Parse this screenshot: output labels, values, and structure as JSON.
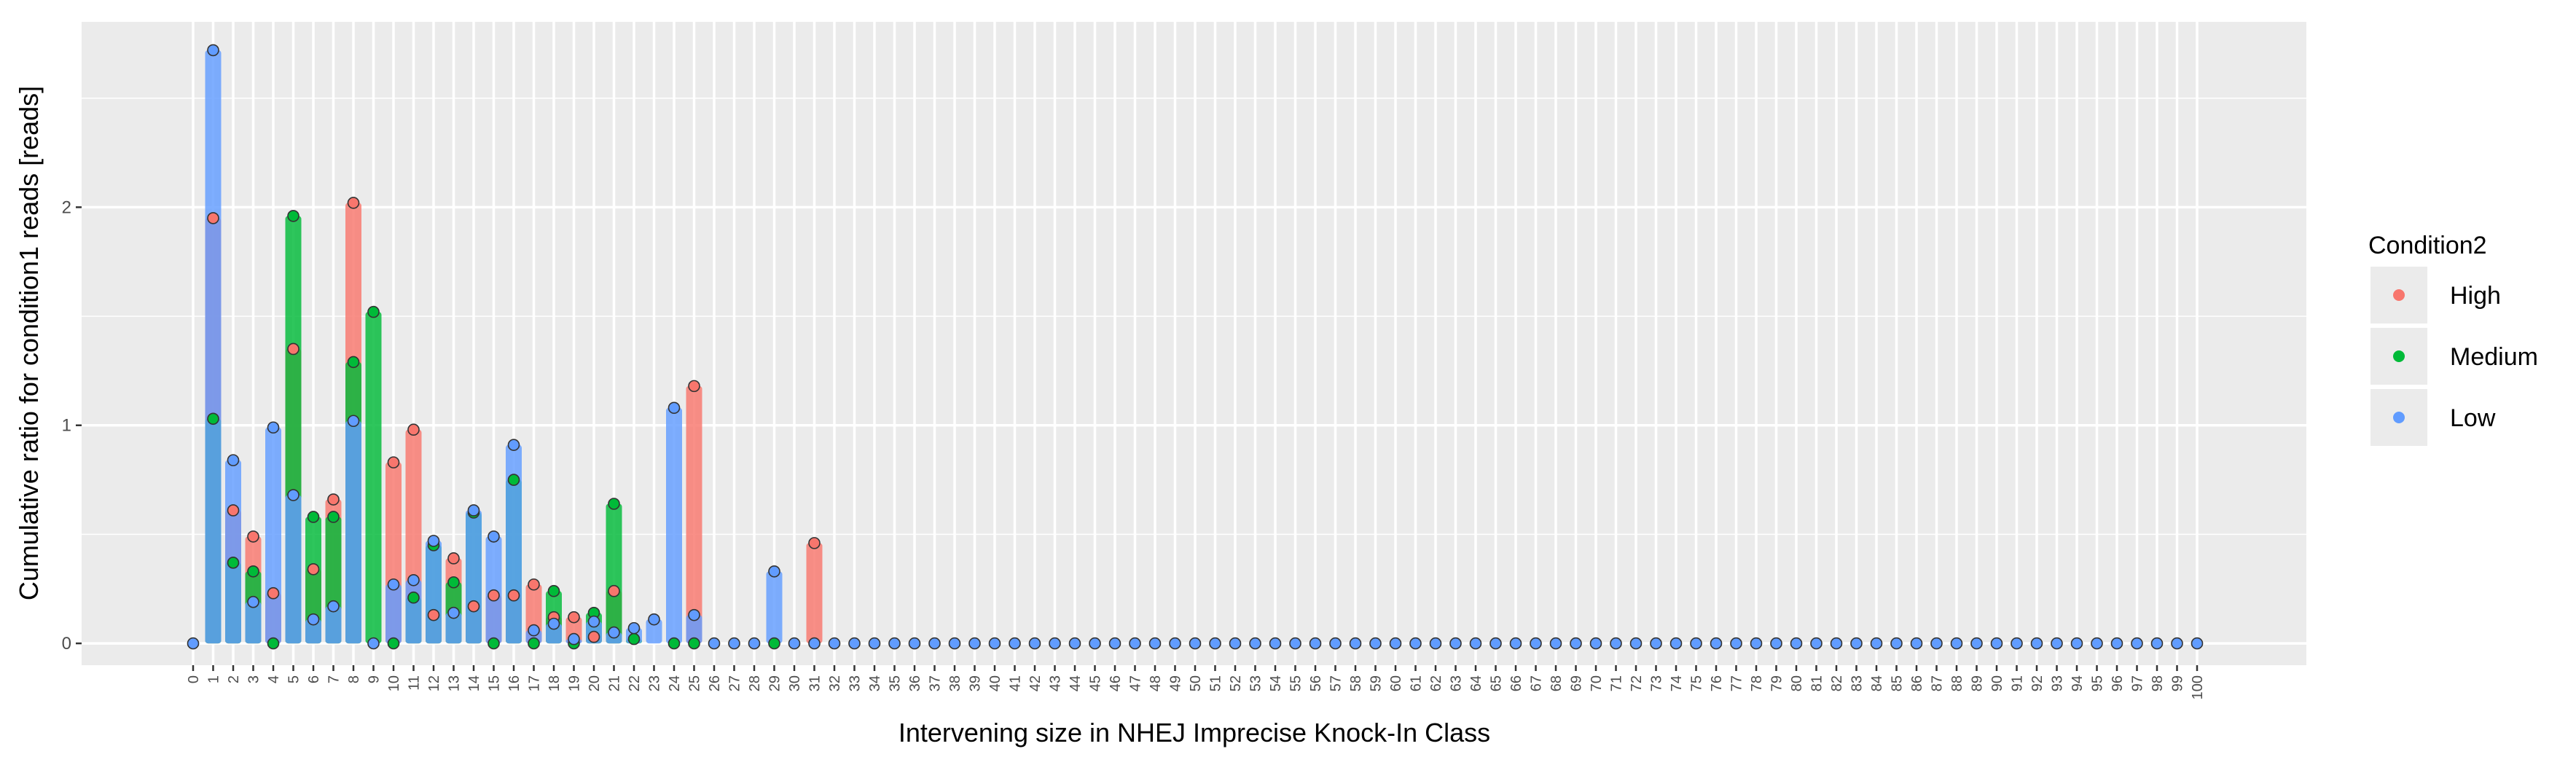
{
  "chart_data": {
    "type": "bar",
    "xlabel": "Intervening size in NHEJ Imprecise Knock-In Class",
    "ylabel": "Cumulative ratio for condition1 reads [reads]",
    "x_min": 0,
    "x_max": 100,
    "ylim": [
      -0.1,
      2.85
    ],
    "yticks": [
      0,
      1,
      2
    ],
    "grid": true,
    "legend": {
      "title": "Condition2",
      "position": "right"
    },
    "series": [
      {
        "name": "High",
        "color": "#F8766D",
        "points": [
          [
            1,
            1.95
          ],
          [
            2,
            0.61
          ],
          [
            3,
            0.49
          ],
          [
            4,
            0.23
          ],
          [
            5,
            1.35
          ],
          [
            6,
            0.34
          ],
          [
            7,
            0.66
          ],
          [
            8,
            2.02
          ],
          [
            10,
            0.83
          ],
          [
            11,
            0.98
          ],
          [
            12,
            0.13
          ],
          [
            13,
            0.39
          ],
          [
            14,
            0.17
          ],
          [
            15,
            0.22
          ],
          [
            16,
            0.22
          ],
          [
            17,
            0.27
          ],
          [
            18,
            0.12
          ],
          [
            19,
            0.12
          ],
          [
            20,
            0.03
          ],
          [
            21,
            0.24
          ],
          [
            25,
            1.18
          ],
          [
            31,
            0.46
          ]
        ]
      },
      {
        "name": "Medium",
        "color": "#00BA38",
        "points": [
          [
            1,
            1.03
          ],
          [
            2,
            0.37
          ],
          [
            3,
            0.33
          ],
          [
            4,
            0.0
          ],
          [
            5,
            1.96
          ],
          [
            6,
            0.58
          ],
          [
            7,
            0.58
          ],
          [
            8,
            1.29
          ],
          [
            9,
            1.52
          ],
          [
            10,
            0.0
          ],
          [
            11,
            0.21
          ],
          [
            12,
            0.45
          ],
          [
            13,
            0.28
          ],
          [
            14,
            0.6
          ],
          [
            15,
            0.0
          ],
          [
            16,
            0.75
          ],
          [
            17,
            0.0
          ],
          [
            18,
            0.24
          ],
          [
            19,
            0.0
          ],
          [
            20,
            0.14
          ],
          [
            21,
            0.64
          ],
          [
            22,
            0.02
          ],
          [
            24,
            0.0
          ],
          [
            25,
            0.0
          ],
          [
            29,
            0.0
          ]
        ]
      },
      {
        "name": "Low",
        "color": "#619CFF",
        "points": [
          [
            0,
            0.0
          ],
          [
            1,
            2.72
          ],
          [
            2,
            0.84
          ],
          [
            3,
            0.19
          ],
          [
            4,
            0.99
          ],
          [
            5,
            0.68
          ],
          [
            6,
            0.11
          ],
          [
            7,
            0.17
          ],
          [
            8,
            1.02
          ],
          [
            9,
            0.0
          ],
          [
            10,
            0.27
          ],
          [
            11,
            0.29
          ],
          [
            12,
            0.47
          ],
          [
            13,
            0.14
          ],
          [
            14,
            0.61
          ],
          [
            15,
            0.49
          ],
          [
            16,
            0.91
          ],
          [
            17,
            0.06
          ],
          [
            18,
            0.09
          ],
          [
            19,
            0.02
          ],
          [
            20,
            0.1
          ],
          [
            21,
            0.05
          ],
          [
            22,
            0.07
          ],
          [
            23,
            0.11
          ],
          [
            24,
            1.08
          ],
          [
            25,
            0.13
          ],
          [
            29,
            0.33
          ]
        ]
      }
    ],
    "low_zero_from": 26
  }
}
